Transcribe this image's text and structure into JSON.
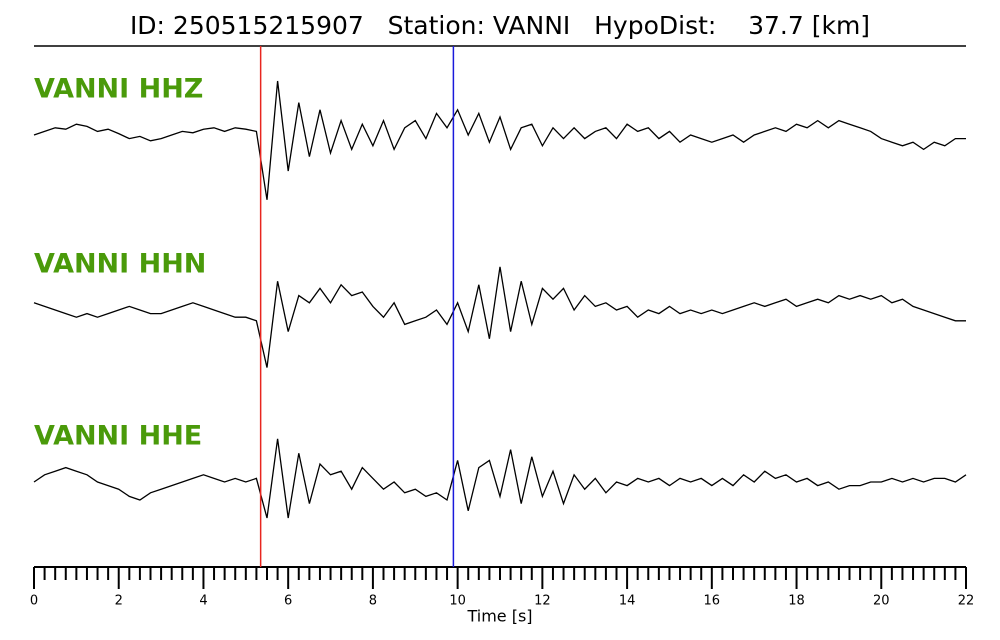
{
  "chart_data": {
    "type": "seismogram",
    "title": "ID: 250515215907   Station: VANNI   HypoDist:    37.7 [km]",
    "xlabel": "Time [s]",
    "xlim": [
      0,
      22
    ],
    "xticks": [
      0,
      2,
      4,
      6,
      8,
      10,
      12,
      14,
      16,
      18,
      20,
      22
    ],
    "xminorticks": [
      0.25,
      0.5,
      0.75,
      1,
      1.25,
      1.5,
      1.75,
      2.25,
      2.5,
      2.75,
      3,
      3.25,
      3.5,
      3.75,
      4.25,
      4.5,
      4.75,
      5,
      5.25,
      5.5,
      5.75,
      6.25,
      6.5,
      6.75,
      7,
      7.25,
      7.5,
      7.75,
      8.25,
      8.5,
      8.75,
      9,
      9.25,
      9.5,
      9.75,
      10.25,
      10.5,
      10.75,
      11,
      11.25,
      11.5,
      11.75,
      12.25,
      12.5,
      12.75,
      13,
      13.25,
      13.5,
      13.75,
      14.25,
      14.5,
      14.75,
      15,
      15.25,
      15.5,
      15.75,
      16.25,
      16.5,
      16.75,
      17,
      17.25,
      17.5,
      17.75,
      18.25,
      18.5,
      18.75,
      19,
      19.25,
      19.5,
      19.75,
      20.25,
      20.5,
      20.75,
      21,
      21.25,
      21.5,
      21.75
    ],
    "ylim": [
      -1,
      1
    ],
    "label_color": "#4a9a0a",
    "vlines": [
      {
        "x": 5.35,
        "color": "#e8251f"
      },
      {
        "x": 9.9,
        "color": "#1a1adb"
      }
    ],
    "x": [
      0,
      0.25,
      0.5,
      0.75,
      1,
      1.25,
      1.5,
      1.75,
      2,
      2.25,
      2.5,
      2.75,
      3,
      3.25,
      3.5,
      3.75,
      4,
      4.25,
      4.5,
      4.75,
      5,
      5.25,
      5.5,
      5.75,
      6,
      6.25,
      6.5,
      6.75,
      7,
      7.25,
      7.5,
      7.75,
      8,
      8.25,
      8.5,
      8.75,
      9,
      9.25,
      9.5,
      9.75,
      10,
      10.25,
      10.5,
      10.75,
      11,
      11.25,
      11.5,
      11.75,
      12,
      12.25,
      12.5,
      12.75,
      13,
      13.25,
      13.5,
      13.75,
      14,
      14.25,
      14.5,
      14.75,
      15,
      15.25,
      15.5,
      15.75,
      16,
      16.25,
      16.5,
      16.75,
      17,
      17.25,
      17.5,
      17.75,
      18,
      18.25,
      18.5,
      18.75,
      19,
      19.25,
      19.5,
      19.75,
      20,
      20.25,
      20.5,
      20.75,
      21,
      21.25,
      21.5,
      21.75,
      22
    ],
    "series": [
      {
        "name": "VANNI HHZ",
        "color": "#000000",
        "values": [
          0.0,
          0.05,
          0.1,
          0.08,
          0.15,
          0.12,
          0.05,
          0.08,
          0.02,
          -0.05,
          -0.02,
          -0.08,
          -0.05,
          0.0,
          0.05,
          0.03,
          0.08,
          0.1,
          0.05,
          0.1,
          0.08,
          0.05,
          -0.9,
          0.75,
          -0.5,
          0.45,
          -0.3,
          0.35,
          -0.25,
          0.2,
          -0.2,
          0.15,
          -0.15,
          0.2,
          -0.2,
          0.1,
          0.2,
          -0.05,
          0.3,
          0.1,
          0.35,
          0.0,
          0.3,
          -0.1,
          0.25,
          -0.2,
          0.1,
          0.15,
          -0.15,
          0.1,
          -0.05,
          0.1,
          -0.05,
          0.05,
          0.1,
          -0.05,
          0.15,
          0.05,
          0.1,
          -0.05,
          0.05,
          -0.1,
          0.0,
          -0.05,
          -0.1,
          -0.05,
          0.0,
          -0.1,
          0.0,
          0.05,
          0.1,
          0.05,
          0.15,
          0.1,
          0.2,
          0.1,
          0.2,
          0.15,
          0.1,
          0.05,
          -0.05,
          -0.1,
          -0.15,
          -0.1,
          -0.2,
          -0.1,
          -0.15,
          -0.05,
          -0.05
        ]
      },
      {
        "name": "VANNI HHN",
        "color": "#000000",
        "values": [
          0.1,
          0.05,
          0.0,
          -0.05,
          -0.1,
          -0.05,
          -0.1,
          -0.05,
          0.0,
          0.05,
          0.0,
          -0.05,
          -0.05,
          0.0,
          0.05,
          0.1,
          0.05,
          0.0,
          -0.05,
          -0.1,
          -0.1,
          -0.15,
          -0.8,
          0.4,
          -0.3,
          0.2,
          0.1,
          0.3,
          0.1,
          0.35,
          0.2,
          0.25,
          0.05,
          -0.1,
          0.1,
          -0.2,
          -0.15,
          -0.1,
          0.0,
          -0.2,
          0.1,
          -0.3,
          0.35,
          -0.4,
          0.6,
          -0.3,
          0.4,
          -0.2,
          0.3,
          0.15,
          0.3,
          0.0,
          0.2,
          0.05,
          0.1,
          0.0,
          0.05,
          -0.1,
          0.0,
          -0.05,
          0.05,
          -0.05,
          0.0,
          -0.05,
          0.0,
          -0.05,
          0.0,
          0.05,
          0.1,
          0.05,
          0.1,
          0.15,
          0.05,
          0.1,
          0.15,
          0.1,
          0.2,
          0.15,
          0.2,
          0.15,
          0.2,
          0.1,
          0.15,
          0.05,
          0.0,
          -0.05,
          -0.1,
          -0.15,
          -0.15
        ]
      },
      {
        "name": "VANNI HHE",
        "color": "#000000",
        "values": [
          0.0,
          0.1,
          0.15,
          0.2,
          0.15,
          0.1,
          0.0,
          -0.05,
          -0.1,
          -0.2,
          -0.25,
          -0.15,
          -0.1,
          -0.05,
          0.0,
          0.05,
          0.1,
          0.05,
          0.0,
          0.05,
          0.0,
          0.05,
          -0.5,
          0.6,
          -0.5,
          0.4,
          -0.3,
          0.25,
          0.1,
          0.15,
          -0.1,
          0.2,
          0.05,
          -0.1,
          0.0,
          -0.15,
          -0.1,
          -0.2,
          -0.15,
          -0.25,
          0.3,
          -0.4,
          0.2,
          0.3,
          -0.2,
          0.45,
          -0.3,
          0.35,
          -0.2,
          0.15,
          -0.3,
          0.1,
          -0.1,
          0.05,
          -0.15,
          0.0,
          -0.05,
          0.05,
          0.0,
          0.05,
          -0.05,
          0.05,
          0.0,
          0.05,
          -0.05,
          0.05,
          -0.05,
          0.1,
          0.0,
          0.15,
          0.05,
          0.1,
          0.0,
          0.05,
          -0.05,
          0.0,
          -0.1,
          -0.05,
          -0.05,
          0.0,
          0.0,
          0.05,
          0.0,
          0.05,
          0.0,
          0.05,
          0.05,
          0.0,
          0.1
        ]
      }
    ]
  }
}
